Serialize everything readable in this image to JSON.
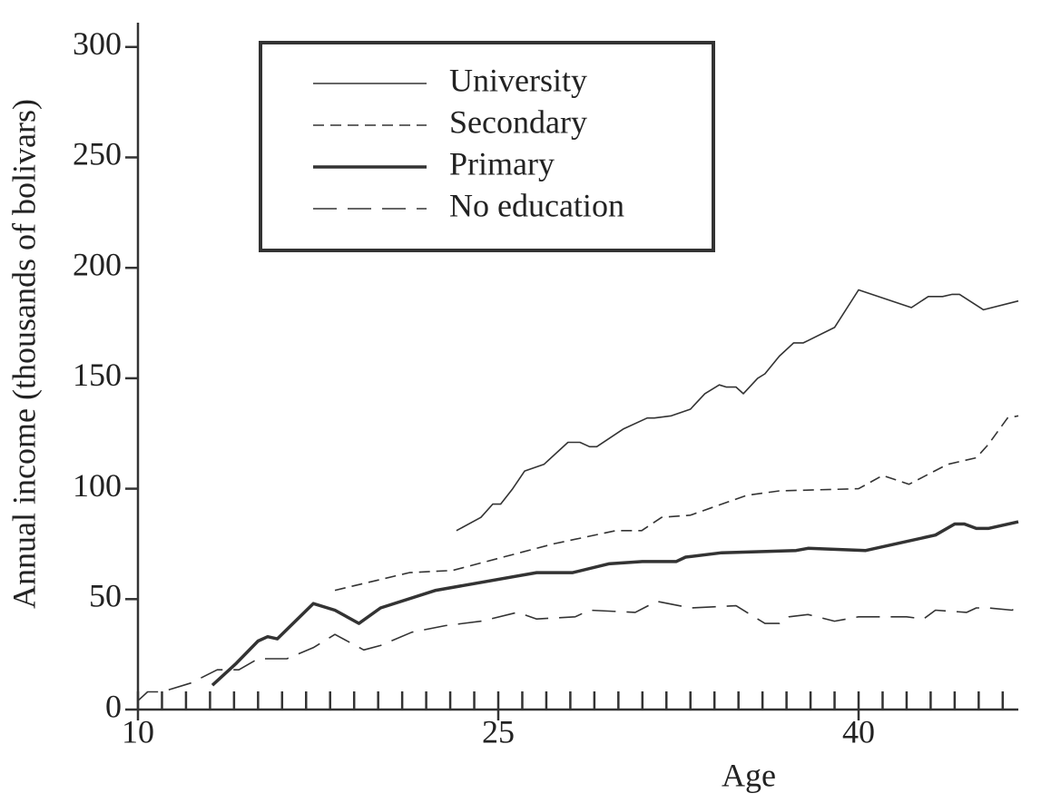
{
  "chart_data": {
    "type": "line",
    "x_label": "Age",
    "y_label": "Annual income (thousands of bolivars)",
    "xlim": [
      10,
      46.65
    ],
    "ylim": [
      0,
      311
    ],
    "xticks": [
      10,
      25,
      40
    ],
    "xminorticks": [
      10,
      11,
      12,
      13,
      14,
      15,
      16,
      17,
      18,
      19,
      20,
      21,
      22,
      23,
      24,
      25,
      26,
      27,
      28,
      29,
      30,
      31,
      32,
      33,
      34,
      35,
      36,
      37,
      38,
      39,
      40,
      41,
      42,
      43,
      44,
      45,
      46
    ],
    "yticks": [
      0,
      50,
      100,
      150,
      200,
      250,
      300
    ],
    "legend": "upper left",
    "series": [
      {
        "name": "University",
        "color": "#333333",
        "width": 1.6,
        "dash": "none",
        "x": [
          23.26,
          24.28,
          24.77,
          25.1,
          25.6,
          26.1,
          26.9,
          27.9,
          28.4,
          28.8,
          29.1,
          30.2,
          31.2,
          31.5,
          32.2,
          33.0,
          33.6,
          34.2,
          34.5,
          34.9,
          35.2,
          35.8,
          36.1,
          36.7,
          37.3,
          37.7,
          39.0,
          40,
          42.2,
          42.9,
          43.5,
          43.9,
          44.2,
          45.2,
          46.65
        ],
        "values": [
          81,
          87,
          93,
          93,
          100,
          108,
          111,
          121,
          121,
          119,
          119,
          127,
          132,
          132,
          133,
          136,
          143,
          147,
          146,
          146,
          143,
          150,
          152,
          160,
          166,
          166,
          173,
          190,
          182,
          187,
          187,
          188,
          188,
          181,
          185
        ]
      },
      {
        "name": "Secondary",
        "color": "#333333",
        "width": 1.6,
        "dash": "12,7",
        "x": [
          18.2,
          21.3,
          23.1,
          25.2,
          27.3,
          29.9,
          30.97,
          31.8,
          33,
          34.3,
          35.35,
          36.7,
          40,
          41,
          42.1,
          43.7,
          44.9,
          45.4,
          46.2,
          46.65
        ],
        "values": [
          54,
          62,
          63,
          69,
          75,
          81,
          81,
          87,
          88,
          93,
          97,
          99,
          100,
          106,
          102,
          111,
          114,
          120,
          132,
          133
        ]
      },
      {
        "name": "Primary",
        "color": "#333333",
        "width": 3.5,
        "dash": "none",
        "x": [
          13.1,
          14.1,
          15,
          15.4,
          15.8,
          17.3,
          18.2,
          19.2,
          20.1,
          22.4,
          26.6,
          28.1,
          29.6,
          31,
          32.4,
          32.8,
          34.3,
          37.4,
          37.9,
          40.3,
          43.2,
          44,
          44.4,
          44.9,
          45.4,
          46.65
        ],
        "values": [
          11,
          21,
          31,
          33,
          32,
          48,
          45,
          39,
          46,
          54,
          62,
          62,
          66,
          67,
          67,
          69,
          71,
          72,
          73,
          72,
          79,
          84,
          84,
          82,
          82,
          85
        ]
      },
      {
        "name": "No education",
        "color": "#333333",
        "width": 1.6,
        "dash": "26,12",
        "x": [
          10,
          10.4,
          11,
          12.2,
          13.3,
          14.2,
          15,
          15.6,
          16.2,
          17.3,
          18.2,
          19.4,
          20.1,
          21.4,
          22.8,
          24.3,
          25.8,
          26.6,
          28.2,
          28.8,
          30.7,
          31.6,
          33,
          34.9,
          36.1,
          36.7,
          37.1,
          37.9,
          39.0,
          40,
          42,
          42.7,
          43.2,
          44.5,
          44.9,
          45.4,
          46.4,
          46.65
        ],
        "values": [
          4,
          8,
          8,
          12,
          18,
          18,
          23,
          23,
          23,
          28,
          34,
          27,
          29,
          35,
          38,
          40,
          44,
          41,
          42,
          45,
          44,
          49,
          46,
          47,
          39,
          39,
          42,
          43,
          40,
          42,
          42,
          41,
          45,
          44,
          46,
          46,
          45,
          48
        ]
      }
    ]
  }
}
